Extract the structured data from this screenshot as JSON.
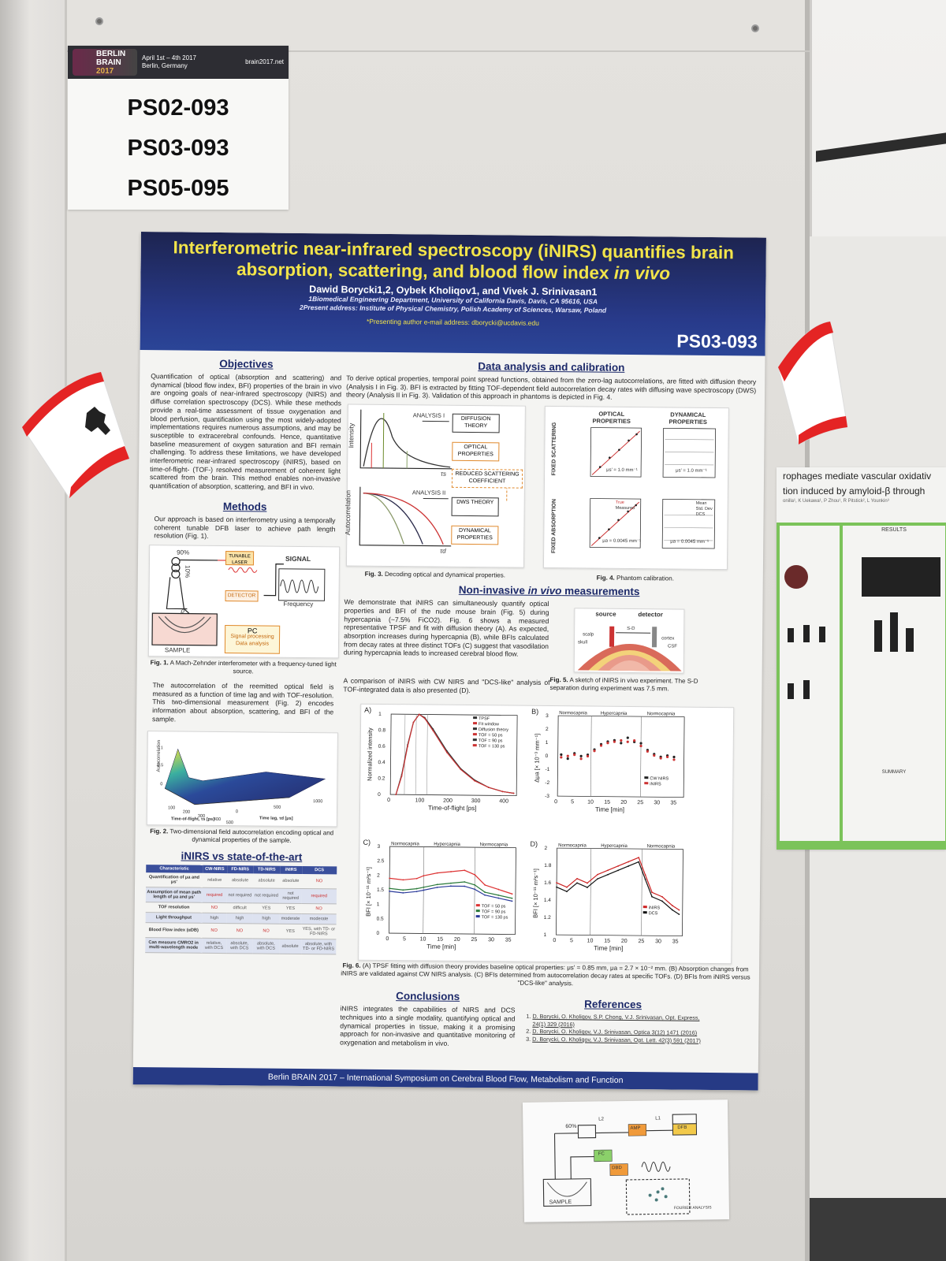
{
  "id_label": {
    "logo_line1": "BERLIN",
    "logo_line2": "BRAIN",
    "logo_year": "2017",
    "dates": "April 1st – 4th 2017",
    "city": "Berlin, Germany",
    "site": "brain2017.net",
    "codes": [
      "PS02-093",
      "PS03-093",
      "PS05-095"
    ]
  },
  "poster": {
    "title_line1": "Interferometric near-infrared spectroscopy (iNIRS) quantifies brain",
    "title_line2a": "absorption, scattering, and blood flow index ",
    "title_line2b": "in vivo",
    "authors": "Dawid Borycki1,2, Oybek Kholiqov1, and Vivek J. Srinivasan1",
    "affil1": "1Biomedical Engineering Department, University of California Davis, Davis, CA 95616, USA",
    "affil2": "2Present address: Institute of Physical Chemistry, Polish Academy of Sciences, Warsaw, Poland",
    "email": "*Presenting author e-mail address: dborycki@ucdavis.edu",
    "code": "PS03-093",
    "objectives": {
      "title": "Objectives",
      "text": "Quantification of optical (absorption and scattering) and dynamical (blood flow index, BFI) properties of the brain in vivo are ongoing goals of near-infrared spectroscopy (NIRS) and diffuse correlation spectroscopy (DCS). While these methods provide a real-time assessment of tissue oxygenation and blood perfusion, quantification using the most widely-adopted implementations requires numerous assumptions, and may be susceptible to extracerebral confounds. Hence, quantitative baseline measurement of oxygen saturation and BFI remain challenging. To address these limitations, we have developed interferometric near-infrared spectroscopy (iNIRS), based on time-of-flight- (TOF-) resolved measurement of coherent light scattered from the brain. This method enables non-invasive quantification of absorption, scattering, and BFI in vivo."
    },
    "methods": {
      "title": "Methods",
      "text": "Our approach is based on interferometry using a temporally coherent tunable DFB laser to achieve path length resolution (Fig. 1).",
      "fig1": {
        "pct90": "90%",
        "pct10": "10%",
        "laser": "TUNABLE LASER",
        "signal": "SIGNAL",
        "frequency": "Frequency",
        "detector": "DETECTOR",
        "rho": "ρ",
        "sample": "SAMPLE",
        "pc": "PC",
        "pc_sub1": "Signal processing",
        "pc_sub2": "Data analysis"
      },
      "fig1_caption_bold": "Fig. 1.",
      "fig1_caption": " A Mach-Zehnder interferometer with a frequency-tuned light source.",
      "text2": "The autocorrelation of the reemitted optical field is measured as a function of time lag and with TOF-resolution. This two-dimensional measurement (Fig. 2) encodes information about absorption, scattering, and BFI of the sample.",
      "fig2": {
        "zlabel": "Autocorrelation",
        "xlabel": "Time-of-flight, τs [ps]",
        "ylabel": "Time lag, τd [μs]",
        "xticks": [
          "100",
          "200",
          "300",
          "400",
          "500"
        ],
        "yticks": [
          "0",
          "500",
          "1000"
        ],
        "zticks": [
          "1",
          "0.5",
          "0"
        ]
      },
      "fig2_caption_bold": "Fig. 2.",
      "fig2_caption": " Two-dimensional field autocorrelation encoding optical and dynamical properties of the sample."
    },
    "comparison": {
      "title": "iNIRS vs state-of-the-art",
      "headers": [
        "Characteristic",
        "CW-NIRS",
        "FD-NIRS",
        "TD-NIRS",
        "iNIRS",
        "DCS"
      ],
      "rows": [
        [
          "Quantification of μa and μs'",
          "relative",
          "absolute",
          "absolute",
          "absolute",
          "NO"
        ],
        [
          "Assumption of mean path length of μa and μs'",
          "required",
          "not required",
          "not required",
          "not required",
          "required"
        ],
        [
          "TOF resolution",
          "NO",
          "difficult",
          "YES",
          "YES",
          "NO"
        ],
        [
          "Light throughput",
          "high",
          "high",
          "high",
          "moderate",
          "moderate"
        ],
        [
          "Blood Flow index (αDB)",
          "NO",
          "NO",
          "NO",
          "YES",
          "YES, with TD- or FD-NIRS"
        ],
        [
          "Can measure CMRO2 in multi-wavelength mode",
          "relative, with DCS",
          "absolute, with DCS",
          "absolute, with DCS",
          "absolute",
          "absolute, with TD- or FD-NIRS"
        ]
      ]
    },
    "data_analysis": {
      "title": "Data analysis and calibration",
      "text": "To derive optical properties, temporal point spread functions, obtained from the zero-lag autocorrelations, are fitted with diffusion theory (Analysis I in Fig. 3). BFI is extracted by fitting TOF-dependent field autocorrelation decay rates with diffusing wave spectroscopy (DWS) theory (Analysis II in Fig. 3). Validation of this approach in phantoms is depicted in Fig. 4.",
      "fig3": {
        "ylabel_top": "Intensity",
        "ylabel_bottom": "Autocorrelation",
        "analysis1": "ANALYSIS I",
        "analysis2": "ANALYSIS II",
        "diffusion": "DIFFUSION THEORY",
        "optical": "OPTICAL PROPERTIES",
        "reduced": "REDUCED SCATTERING COEFFICIENT",
        "dws": "DWS THEORY",
        "dynamical": "DYNAMICAL PROPERTIES",
        "tau_s": "τs",
        "tau_d": "τd"
      },
      "fig3_caption_bold": "Fig. 3.",
      "fig3_caption": " Decoding optical and dynamical properties.",
      "fig4": {
        "col1": "OPTICAL PROPERTIES",
        "col2": "DYNAMICAL PROPERTIES",
        "row1": "FIXED SCATTERING",
        "row2": "FIXED ABSORPTION",
        "note_top": "μs' = 1.0 mm⁻¹",
        "note_bottom": "μa = 0.0045 mm⁻¹",
        "legend_true": "True",
        "legend_measured": "Measured",
        "legend_mean": "Mean",
        "legend_std": "Std. Dev",
        "legend_dcs": "DCS"
      },
      "fig4_caption_bold": "Fig. 4.",
      "fig4_caption": " Phantom calibration."
    },
    "invivo": {
      "title_a": "Non-invasive ",
      "title_b": "in vivo",
      "title_c": " measurements",
      "text": "We demonstrate that iNIRS can simultaneously quantify optical properties and BFI of the nude mouse brain (Fig. 5) during hypercapnia (~7.5% FiCO2). Fig. 6 shows a measured representative TPSF and fit with diffusion theory (A). As expected, absorption increases during hypercapnia (B), while BFIs calculated from decay rates at three distinct TOFs (C) suggest that vasodilation during hypercapnia leads to increased cerebral blood flow.",
      "text2": "A comparison of iNIRS with CW NIRS and \"DCS-like\" analysis of TOF-integrated data is also presented (D).",
      "fig5": {
        "source": "source",
        "detector": "detector",
        "sd": "S-D",
        "scalp": "scalp",
        "skull": "skull",
        "cortex": "cortex",
        "csf": "CSF"
      },
      "fig5_caption_bold": "Fig. 5.",
      "fig5_caption": " A sketch of iNIRS in vivo experiment. The S-D separation during experiment was 7.5 mm.",
      "fig6_caption_bold": "Fig. 6.",
      "fig6_caption": " (A) TPSF fitting with diffusion theory provides baseline optical properties: μs' = 0.85 mm, μa = 2.7 × 10⁻² mm. (B) Absorption changes from iNIRS are validated against CW NIRS analysis. (C) BFIs determined from autocorrelation decay rates at specific TOFs. (D) BFIs from iNIRS versus \"DCS-like\" analysis."
    },
    "conclusions": {
      "title": "Conclusions",
      "text": "iNIRS integrates the capabilities of NIRS and DCS techniques into a single modality, quantifying optical and dynamical properties in tissue, making it a promising approach for non-invasive and quantitative monitoring of oxygenation and metabolism in vivo."
    },
    "references": {
      "title": "References",
      "items": [
        "D. Borycki, O. Kholiqov, S.P. Chong, V.J. Srinivasan, Opt. Express, 24(1) 329 (2016)",
        "D. Borycki, O. Kholiqov, V.J. Srinivasan, Optica 3(12) 1471 (2016)",
        "D. Borycki, O. Kholiqov, V.J. Srinivasan, Opt. Lett. 42(3) 591 (2017)"
      ]
    },
    "footer": "Berlin BRAIN 2017 – International Symposium on Cerebral Blood Flow, Metabolism and Function"
  },
  "chart_data": [
    {
      "type": "line",
      "title": "A)",
      "xlabel": "Time-of-flight [ps]",
      "ylabel": "Normalized intensity",
      "xlim": [
        0,
        450
      ],
      "ylim": [
        0,
        1.0
      ],
      "xticks": [
        0,
        100,
        200,
        300,
        400
      ],
      "yticks": [
        0.0,
        0.2,
        0.4,
        0.6,
        0.8,
        1.0
      ],
      "legend": [
        "TPSF",
        "Fit window",
        "Diffusion theory",
        "TOF = 50 ps",
        "TOF = 90 ps",
        "TOF = 130 ps"
      ],
      "series": [
        {
          "name": "TPSF",
          "x": [
            20,
            40,
            60,
            80,
            100,
            120,
            150,
            200,
            250,
            300,
            350,
            400,
            440
          ],
          "values": [
            0.0,
            0.25,
            0.62,
            0.9,
            1.0,
            0.96,
            0.82,
            0.55,
            0.33,
            0.19,
            0.1,
            0.05,
            0.03
          ]
        },
        {
          "name": "Diffusion theory",
          "x": [
            20,
            40,
            60,
            80,
            100,
            120,
            150,
            200,
            250,
            300,
            350,
            400,
            440
          ],
          "values": [
            0.0,
            0.23,
            0.6,
            0.9,
            1.0,
            0.95,
            0.8,
            0.53,
            0.32,
            0.18,
            0.1,
            0.05,
            0.03
          ]
        }
      ],
      "vlines": [
        50,
        90,
        130
      ]
    },
    {
      "type": "scatter",
      "title": "B)",
      "xlabel": "Time [min]",
      "ylabel": "Δμa [× 10⁻³ mm⁻¹]",
      "xlim": [
        0,
        38
      ],
      "ylim": [
        -3,
        3
      ],
      "xticks": [
        0,
        5,
        10,
        15,
        20,
        25,
        30,
        35
      ],
      "yticks": [
        -3,
        -2,
        -1,
        0,
        1,
        2,
        3
      ],
      "phases": [
        "Normocapnia",
        "Hypercapnia",
        "Normocapnia"
      ],
      "phase_bounds": [
        10,
        25
      ],
      "series": [
        {
          "name": "CW NIRS",
          "x": [
            1,
            3,
            5,
            7,
            9,
            11,
            13,
            15,
            17,
            19,
            21,
            23,
            25,
            27,
            29,
            31,
            33,
            35
          ],
          "values": [
            0.1,
            -0.2,
            0.2,
            0.0,
            0.1,
            0.5,
            0.9,
            1.1,
            1.2,
            1.0,
            1.4,
            1.1,
            1.0,
            0.5,
            0.2,
            0.0,
            0.1,
            0.0
          ]
        },
        {
          "name": "iNIRS",
          "x": [
            1,
            3,
            5,
            7,
            9,
            11,
            13,
            15,
            17,
            19,
            21,
            23,
            25,
            27,
            29,
            31,
            33,
            35
          ],
          "values": [
            -0.1,
            0.0,
            0.1,
            -0.2,
            0.0,
            0.4,
            0.8,
            1.0,
            1.1,
            1.2,
            1.1,
            1.2,
            0.8,
            0.4,
            0.1,
            -0.1,
            0.0,
            -0.2
          ]
        }
      ]
    },
    {
      "type": "line",
      "title": "C)",
      "xlabel": "Time [min]",
      "ylabel": "BFI [× 10⁻¹¹ m²s⁻¹]",
      "xlim": [
        0,
        37
      ],
      "ylim": [
        0,
        3.0
      ],
      "xticks": [
        0,
        5,
        10,
        15,
        20,
        25,
        30,
        35
      ],
      "yticks": [
        0.0,
        0.5,
        1.0,
        1.5,
        2.0,
        2.5,
        3.0
      ],
      "phases": [
        "Normocapnia",
        "Hypercapnia",
        "Normocapnia"
      ],
      "phase_bounds": [
        10,
        25
      ],
      "series": [
        {
          "name": "TOF = 50 ps",
          "x": [
            0,
            4,
            8,
            10,
            14,
            18,
            22,
            25,
            28,
            32,
            36
          ],
          "values": [
            1.9,
            1.85,
            1.9,
            2.0,
            2.1,
            2.15,
            2.2,
            2.05,
            1.7,
            1.55,
            1.4
          ]
        },
        {
          "name": "TOF = 90 ps",
          "x": [
            0,
            4,
            8,
            10,
            14,
            18,
            22,
            25,
            28,
            32,
            36
          ],
          "values": [
            1.55,
            1.5,
            1.55,
            1.6,
            1.7,
            1.75,
            1.8,
            1.7,
            1.45,
            1.35,
            1.25
          ]
        },
        {
          "name": "TOF = 130 ps",
          "x": [
            0,
            4,
            8,
            10,
            14,
            18,
            22,
            25,
            28,
            32,
            36
          ],
          "values": [
            1.45,
            1.4,
            1.45,
            1.5,
            1.6,
            1.65,
            1.65,
            1.55,
            1.35,
            1.25,
            1.15
          ]
        }
      ]
    },
    {
      "type": "line",
      "title": "D)",
      "xlabel": "Time [min]",
      "ylabel": "BFI [× 10⁻¹¹ m²s⁻¹]",
      "xlim": [
        0,
        37
      ],
      "ylim": [
        1.0,
        2.0
      ],
      "xticks": [
        0,
        5,
        10,
        15,
        20,
        25,
        30,
        35
      ],
      "yticks": [
        1.0,
        1.2,
        1.4,
        1.6,
        1.8,
        2.0
      ],
      "phases": [
        "Normocapnia",
        "Hypercapnia",
        "Normocapnia"
      ],
      "phase_bounds": [
        10,
        25
      ],
      "series": [
        {
          "name": "iNIRS",
          "x": [
            0,
            3,
            6,
            9,
            12,
            15,
            18,
            21,
            24,
            26,
            28,
            31,
            34,
            36
          ],
          "values": [
            1.6,
            1.55,
            1.65,
            1.6,
            1.7,
            1.75,
            1.8,
            1.85,
            1.9,
            1.7,
            1.5,
            1.45,
            1.35,
            1.3
          ]
        },
        {
          "name": "DCS",
          "x": [
            0,
            3,
            6,
            9,
            12,
            15,
            18,
            21,
            24,
            26,
            28,
            31,
            34,
            36
          ],
          "values": [
            1.55,
            1.5,
            1.6,
            1.55,
            1.65,
            1.7,
            1.75,
            1.8,
            1.85,
            1.65,
            1.45,
            1.4,
            1.3,
            1.25
          ]
        }
      ]
    }
  ],
  "neighbor_poster": {
    "title1": "rophages mediate vascular oxidativ",
    "title2": "tion induced by amyloid-β through",
    "authors": "onilla¹, K Uekawa¹, P Zhou¹, R Pitstick², L Younkin³",
    "results": "RESULTS",
    "summary": "SUMMARY"
  },
  "bottom_sheet": {
    "pct": "60%",
    "labels": [
      "L2",
      "L1",
      "AMP",
      "DFB",
      "FC",
      "DBD",
      "SAMPLE",
      "FOURIER ANALYSIS"
    ]
  }
}
